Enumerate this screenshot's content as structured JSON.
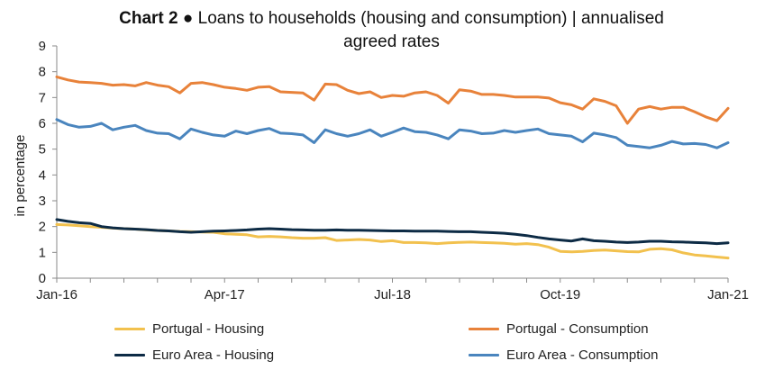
{
  "chart_data": {
    "type": "line",
    "title_bold": "Chart 2",
    "title_rest": " ● Loans to households (housing and consumption) | annualised",
    "title_line2": "agreed rates",
    "ylabel": "in percentage",
    "ylim": [
      0,
      9
    ],
    "yticks": [
      0,
      1,
      2,
      3,
      4,
      5,
      6,
      7,
      8,
      9
    ],
    "xtick_labels": [
      "Jan-16",
      "Apr-17",
      "Jul-18",
      "Oct-19",
      "Jan-21"
    ],
    "xtick_index": [
      0,
      15,
      30,
      45,
      60
    ],
    "n_points": 61,
    "grid": false,
    "legend_position": "bottom",
    "series": [
      {
        "name": "Portugal - Housing",
        "color": "#F2C14E",
        "values": [
          2.08,
          2.06,
          2.03,
          2.0,
          1.97,
          1.94,
          1.92,
          1.9,
          1.87,
          1.85,
          1.83,
          1.81,
          1.8,
          1.79,
          1.78,
          1.72,
          1.7,
          1.68,
          1.6,
          1.62,
          1.6,
          1.57,
          1.55,
          1.55,
          1.57,
          1.46,
          1.48,
          1.5,
          1.48,
          1.42,
          1.45,
          1.38,
          1.38,
          1.37,
          1.34,
          1.37,
          1.39,
          1.4,
          1.38,
          1.37,
          1.35,
          1.32,
          1.34,
          1.3,
          1.2,
          1.04,
          1.02,
          1.04,
          1.07,
          1.09,
          1.06,
          1.03,
          1.02,
          1.12,
          1.14,
          1.1,
          0.98,
          0.9,
          0.86,
          0.82,
          0.78
        ]
      },
      {
        "name": "Portugal - Consumption",
        "color": "#E8823A",
        "values": [
          7.8,
          7.68,
          7.6,
          7.58,
          7.55,
          7.48,
          7.5,
          7.45,
          7.58,
          7.48,
          7.42,
          7.18,
          7.55,
          7.58,
          7.5,
          7.4,
          7.35,
          7.28,
          7.4,
          7.42,
          7.22,
          7.2,
          7.18,
          6.9,
          7.52,
          7.5,
          7.28,
          7.15,
          7.22,
          7.0,
          7.08,
          7.05,
          7.18,
          7.22,
          7.08,
          6.78,
          7.3,
          7.25,
          7.12,
          7.12,
          7.08,
          7.02,
          7.02,
          7.02,
          6.98,
          6.8,
          6.72,
          6.55,
          6.95,
          6.85,
          6.68,
          6.0,
          6.55,
          6.65,
          6.55,
          6.62,
          6.62,
          6.45,
          6.25,
          6.1,
          6.58
        ]
      },
      {
        "name": "Euro Area - Housing",
        "color": "#0D2B45",
        "values": [
          2.27,
          2.2,
          2.15,
          2.12,
          2.0,
          1.95,
          1.92,
          1.9,
          1.88,
          1.85,
          1.83,
          1.8,
          1.78,
          1.8,
          1.82,
          1.83,
          1.85,
          1.87,
          1.9,
          1.92,
          1.9,
          1.88,
          1.87,
          1.86,
          1.86,
          1.87,
          1.86,
          1.86,
          1.85,
          1.84,
          1.83,
          1.83,
          1.82,
          1.82,
          1.82,
          1.81,
          1.8,
          1.8,
          1.78,
          1.76,
          1.74,
          1.7,
          1.65,
          1.58,
          1.52,
          1.48,
          1.44,
          1.52,
          1.45,
          1.43,
          1.4,
          1.38,
          1.4,
          1.43,
          1.43,
          1.41,
          1.4,
          1.38,
          1.37,
          1.34,
          1.37
        ]
      },
      {
        "name": "Euro Area - Consumption",
        "color": "#4A85BE",
        "values": [
          6.15,
          5.95,
          5.85,
          5.88,
          6.0,
          5.75,
          5.85,
          5.92,
          5.72,
          5.62,
          5.6,
          5.4,
          5.78,
          5.65,
          5.55,
          5.5,
          5.7,
          5.6,
          5.72,
          5.8,
          5.62,
          5.6,
          5.55,
          5.25,
          5.75,
          5.6,
          5.5,
          5.6,
          5.75,
          5.5,
          5.65,
          5.82,
          5.68,
          5.65,
          5.55,
          5.4,
          5.75,
          5.7,
          5.6,
          5.62,
          5.72,
          5.65,
          5.72,
          5.78,
          5.6,
          5.55,
          5.5,
          5.28,
          5.62,
          5.55,
          5.45,
          5.15,
          5.1,
          5.05,
          5.15,
          5.3,
          5.2,
          5.22,
          5.18,
          5.05,
          5.25
        ]
      }
    ]
  }
}
